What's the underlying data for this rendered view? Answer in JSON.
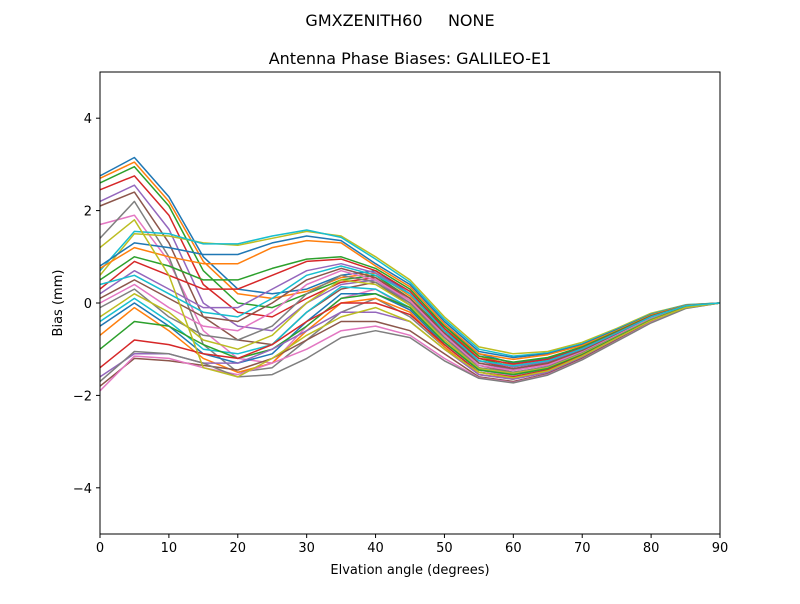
{
  "figure": {
    "suptitle": "GMXZENITH60     NONE"
  },
  "chart_data": {
    "type": "line",
    "title": "Antenna Phase Biases: GALILEO-E1",
    "xlabel": "Elvation angle (degrees)",
    "ylabel": "Bias (mm)",
    "xlim": [
      0,
      90
    ],
    "ylim": [
      -5,
      5
    ],
    "xticks": [
      0,
      10,
      20,
      30,
      40,
      50,
      60,
      70,
      80,
      90
    ],
    "yticks": [
      -4,
      -2,
      0,
      2,
      4
    ],
    "xtick_labels": [
      "0",
      "10",
      "20",
      "30",
      "40",
      "50",
      "60",
      "70",
      "80",
      "90"
    ],
    "ytick_labels": [
      "−4",
      "−2",
      "0",
      "2",
      "4"
    ],
    "grid": false,
    "legend": "none",
    "colors": [
      "#1f77b4",
      "#ff7f0e",
      "#2ca02c",
      "#d62728",
      "#9467bd",
      "#8c564b",
      "#e377c2",
      "#7f7f7f",
      "#bcbd22",
      "#17becf"
    ],
    "x": [
      0,
      5,
      10,
      15,
      20,
      25,
      30,
      35,
      40,
      45,
      50,
      55,
      60,
      65,
      70,
      75,
      80,
      85,
      90
    ],
    "series": [
      {
        "values": [
          2.75,
          3.15,
          2.3,
          1.0,
          0.3,
          0.2,
          0.3,
          0.6,
          0.7,
          0.2,
          -0.5,
          -1.1,
          -1.3,
          -1.2,
          -0.95,
          -0.6,
          -0.25,
          -0.05,
          0.0
        ]
      },
      {
        "values": [
          2.7,
          3.05,
          2.2,
          0.9,
          0.2,
          0.1,
          0.25,
          0.55,
          0.65,
          0.15,
          -0.55,
          -1.15,
          -1.35,
          -1.25,
          -1.0,
          -0.62,
          -0.27,
          -0.05,
          0.0
        ]
      },
      {
        "values": [
          2.6,
          2.95,
          2.1,
          0.7,
          0.0,
          -0.1,
          0.2,
          0.5,
          0.6,
          0.1,
          -0.6,
          -1.2,
          -1.38,
          -1.28,
          -1.02,
          -0.65,
          -0.3,
          -0.06,
          0.0
        ]
      },
      {
        "values": [
          2.45,
          2.75,
          1.9,
          0.4,
          -0.2,
          -0.3,
          0.1,
          0.45,
          0.55,
          0.05,
          -0.65,
          -1.25,
          -1.42,
          -1.32,
          -1.05,
          -0.68,
          -0.32,
          -0.07,
          0.0
        ]
      },
      {
        "values": [
          2.2,
          2.55,
          1.6,
          0.0,
          -0.5,
          -0.6,
          0.0,
          0.4,
          0.5,
          0.0,
          -0.7,
          -1.3,
          -1.45,
          -1.35,
          -1.08,
          -0.7,
          -0.34,
          -0.08,
          0.0
        ]
      },
      {
        "values": [
          2.1,
          2.4,
          1.3,
          -0.3,
          -0.8,
          -0.9,
          -0.2,
          0.3,
          0.45,
          -0.05,
          -0.75,
          -1.35,
          -1.5,
          -1.4,
          -1.1,
          -0.72,
          -0.36,
          -0.09,
          0.0
        ]
      },
      {
        "values": [
          1.7,
          1.9,
          0.9,
          -0.6,
          -1.2,
          -1.3,
          -0.5,
          0.1,
          0.3,
          -0.15,
          -0.85,
          -1.45,
          -1.58,
          -1.45,
          -1.15,
          -0.75,
          -0.38,
          -0.1,
          0.0
        ]
      },
      {
        "values": [
          1.4,
          2.2,
          1.0,
          -0.9,
          -1.5,
          -1.4,
          -0.8,
          -0.2,
          0.1,
          -0.3,
          -0.95,
          -1.55,
          -1.65,
          -1.5,
          -1.18,
          -0.78,
          -0.4,
          -0.1,
          0.0
        ]
      },
      {
        "values": [
          0.6,
          1.5,
          1.45,
          1.3,
          1.25,
          1.4,
          1.55,
          1.45,
          1.0,
          0.5,
          -0.3,
          -0.95,
          -1.1,
          -1.05,
          -0.85,
          -0.55,
          -0.22,
          -0.04,
          0.0
        ]
      },
      {
        "values": [
          0.7,
          1.55,
          1.5,
          1.28,
          1.28,
          1.45,
          1.58,
          1.42,
          0.95,
          0.45,
          -0.35,
          -1.0,
          -1.15,
          -1.08,
          -0.88,
          -0.57,
          -0.24,
          -0.04,
          0.0
        ]
      },
      {
        "values": [
          0.8,
          1.3,
          1.2,
          1.05,
          1.05,
          1.3,
          1.45,
          1.35,
          0.85,
          0.4,
          -0.4,
          -1.05,
          -1.18,
          -1.1,
          -0.9,
          -0.58,
          -0.25,
          -0.05,
          0.0
        ]
      },
      {
        "values": [
          0.75,
          1.2,
          1.0,
          0.85,
          0.85,
          1.2,
          1.35,
          1.3,
          0.8,
          0.35,
          -0.45,
          -1.1,
          -1.22,
          -1.12,
          -0.92,
          -0.6,
          -0.26,
          -0.05,
          0.0
        ]
      },
      {
        "values": [
          0.5,
          1.0,
          0.8,
          0.5,
          0.5,
          0.75,
          0.95,
          1.0,
          0.75,
          0.3,
          -0.5,
          -1.15,
          -1.28,
          -1.18,
          -0.95,
          -0.62,
          -0.28,
          -0.06,
          0.0
        ]
      },
      {
        "values": [
          0.3,
          0.9,
          0.6,
          0.3,
          0.3,
          0.6,
          0.9,
          0.95,
          0.7,
          0.25,
          -0.55,
          -1.2,
          -1.32,
          -1.22,
          -0.98,
          -0.64,
          -0.29,
          -0.06,
          0.0
        ]
      },
      {
        "values": [
          0.2,
          0.7,
          0.3,
          -0.1,
          -0.1,
          0.3,
          0.7,
          0.85,
          0.65,
          0.2,
          -0.6,
          -1.25,
          -1.38,
          -1.27,
          -1.0,
          -0.66,
          -0.3,
          -0.07,
          0.0
        ]
      },
      {
        "values": [
          0.1,
          0.5,
          0.1,
          -0.3,
          -0.4,
          0.0,
          0.5,
          0.75,
          0.55,
          0.1,
          -0.65,
          -1.3,
          -1.42,
          -1.3,
          -1.03,
          -0.68,
          -0.32,
          -0.07,
          0.0
        ]
      },
      {
        "values": [
          0.0,
          0.4,
          -0.1,
          -0.5,
          -0.6,
          -0.2,
          0.4,
          0.7,
          0.5,
          0.05,
          -0.7,
          -1.35,
          -1.46,
          -1.34,
          -1.06,
          -0.7,
          -0.33,
          -0.08,
          0.0
        ]
      },
      {
        "values": [
          -0.1,
          0.3,
          -0.3,
          -0.7,
          -0.8,
          -0.5,
          0.2,
          0.6,
          0.45,
          0.0,
          -0.75,
          -1.4,
          -1.5,
          -1.38,
          -1.08,
          -0.72,
          -0.35,
          -0.08,
          0.0
        ]
      },
      {
        "values": [
          -0.3,
          0.2,
          -0.2,
          -0.8,
          -1.0,
          -0.7,
          0.0,
          0.5,
          0.4,
          -0.05,
          -0.8,
          -1.42,
          -1.52,
          -1.4,
          -1.1,
          -0.73,
          -0.36,
          -0.09,
          0.0
        ]
      },
      {
        "values": [
          -0.4,
          0.1,
          -0.4,
          -1.0,
          -1.1,
          -0.9,
          -0.2,
          0.35,
          0.3,
          -0.1,
          -0.85,
          -1.45,
          -1.55,
          -1.42,
          -1.12,
          -0.74,
          -0.37,
          -0.09,
          0.0
        ]
      },
      {
        "values": [
          -0.5,
          0.0,
          -0.5,
          -1.1,
          -1.3,
          -1.1,
          -0.4,
          0.2,
          0.2,
          -0.15,
          -0.9,
          -1.5,
          -1.6,
          -1.45,
          -1.14,
          -0.75,
          -0.38,
          -0.1,
          0.0
        ]
      },
      {
        "values": [
          -0.7,
          -0.1,
          -0.6,
          -1.2,
          -1.5,
          -1.3,
          -0.6,
          0.0,
          0.1,
          -0.2,
          -0.95,
          -1.55,
          -1.63,
          -1.48,
          -1.16,
          -0.77,
          -0.39,
          -0.1,
          0.0
        ]
      },
      {
        "values": [
          -1.0,
          -0.4,
          -0.5,
          -0.9,
          -1.2,
          -1.0,
          -0.5,
          0.1,
          0.2,
          -0.1,
          -0.85,
          -1.45,
          -1.55,
          -1.42,
          -1.12,
          -0.74,
          -0.37,
          -0.09,
          0.0
        ]
      },
      {
        "values": [
          -1.4,
          -0.8,
          -0.9,
          -1.1,
          -1.2,
          -0.9,
          -0.4,
          0.0,
          0.0,
          -0.25,
          -0.9,
          -1.5,
          -1.6,
          -1.45,
          -1.14,
          -0.76,
          -0.38,
          -0.1,
          0.0
        ]
      },
      {
        "values": [
          -1.6,
          -1.1,
          -1.1,
          -1.3,
          -1.3,
          -1.0,
          -0.6,
          -0.2,
          -0.2,
          -0.4,
          -1.0,
          -1.55,
          -1.65,
          -1.5,
          -1.18,
          -0.78,
          -0.4,
          -0.1,
          0.0
        ]
      },
      {
        "values": [
          -1.8,
          -1.2,
          -1.25,
          -1.35,
          -1.45,
          -1.2,
          -0.8,
          -0.4,
          -0.4,
          -0.6,
          -1.1,
          -1.6,
          -1.7,
          -1.53,
          -1.2,
          -0.8,
          -0.41,
          -0.11,
          0.0
        ]
      },
      {
        "values": [
          -1.9,
          -1.15,
          -1.2,
          -1.4,
          -1.55,
          -1.3,
          -1.0,
          -0.6,
          -0.5,
          -0.7,
          -1.2,
          -1.62,
          -1.72,
          -1.55,
          -1.22,
          -0.82,
          -0.42,
          -0.11,
          0.0
        ]
      },
      {
        "values": [
          -1.7,
          -1.05,
          -1.1,
          -1.3,
          -1.6,
          -1.55,
          -1.2,
          -0.75,
          -0.6,
          -0.75,
          -1.25,
          -1.63,
          -1.73,
          -1.56,
          -1.23,
          -0.83,
          -0.43,
          -0.12,
          0.0
        ]
      },
      {
        "values": [
          1.2,
          1.8,
          0.6,
          -1.4,
          -1.6,
          -1.2,
          -0.7,
          -0.3,
          -0.1,
          -0.4,
          -1.0,
          -1.5,
          -1.62,
          -1.47,
          -1.15,
          -0.76,
          -0.38,
          -0.1,
          0.0
        ]
      },
      {
        "values": [
          0.4,
          0.6,
          0.2,
          -0.2,
          -0.3,
          0.1,
          0.6,
          0.8,
          0.6,
          0.2,
          -0.6,
          -1.25,
          -1.36,
          -1.25,
          -0.99,
          -0.65,
          -0.3,
          -0.06,
          0.0
        ]
      }
    ]
  }
}
